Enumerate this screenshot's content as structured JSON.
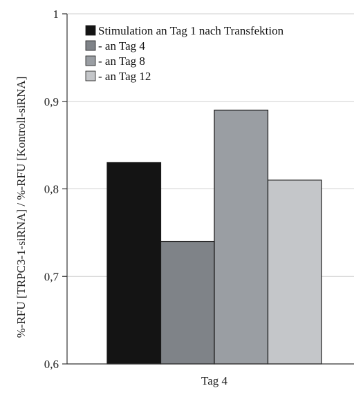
{
  "chart_data": {
    "type": "bar",
    "categories": [
      "Tag 4"
    ],
    "series": [
      {
        "name": "Stimulation an Tag 1 nach Transfektion",
        "values": [
          0.83
        ],
        "color": "#141414"
      },
      {
        "name": "- an Tag 4",
        "values": [
          0.74
        ],
        "color": "#7f8388"
      },
      {
        "name": "- an Tag 8",
        "values": [
          0.89
        ],
        "color": "#9a9ea3"
      },
      {
        "name": "- an Tag 12",
        "values": [
          0.81
        ],
        "color": "#c4c6c9"
      }
    ],
    "title": "",
    "xlabel": "",
    "ylabel": "%-RFU [TRPC3-1-siRNA] / %-RFU [Kontroll-siRNA]",
    "ylim": [
      0.6,
      1.0
    ],
    "yticks": [
      0.6,
      0.7,
      0.8,
      0.9,
      1.0
    ],
    "ytick_labels": [
      "0,6",
      "0,7",
      "0,8",
      "0,9",
      "1"
    ],
    "grid": true,
    "legend_position": "top-right"
  }
}
